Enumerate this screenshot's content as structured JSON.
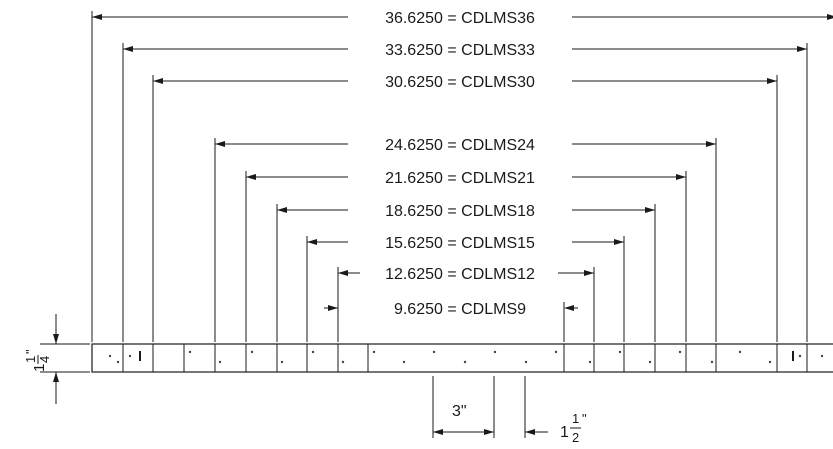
{
  "dimensions": [
    {
      "label": "36.6250 = CDLMS36",
      "left_arrow": true,
      "right_arrow": true
    },
    {
      "label": "33.6250 = CDLMS33",
      "left_arrow": true,
      "right_arrow": true
    },
    {
      "label": "30.6250 = CDLMS30",
      "left_arrow": true,
      "right_arrow": true
    },
    {
      "label": "24.6250 = CDLMS24",
      "left_arrow": true,
      "right_arrow": true
    },
    {
      "label": "21.6250 = CDLMS21",
      "left_arrow": true,
      "right_arrow": true
    },
    {
      "label": "18.6250 = CDLMS18",
      "left_arrow": true,
      "right_arrow": true
    },
    {
      "label": "15.6250 = CDLMS15",
      "left_arrow": true,
      "right_arrow": true
    },
    {
      "label": "12.6250 = CDLMS12",
      "left_arrow": true,
      "right_arrow": true
    },
    {
      "label": "9.6250 = CDLMS9",
      "left_arrow": false,
      "right_arrow": false
    }
  ],
  "pitch_label": "3\"",
  "hole_offset": {
    "whole": "1",
    "numerator": "1",
    "denominator": "2",
    "inch_mark": "\""
  },
  "height_label": {
    "whole": "1",
    "numerator": "1",
    "denominator": "4",
    "inch_mark": "\""
  }
}
